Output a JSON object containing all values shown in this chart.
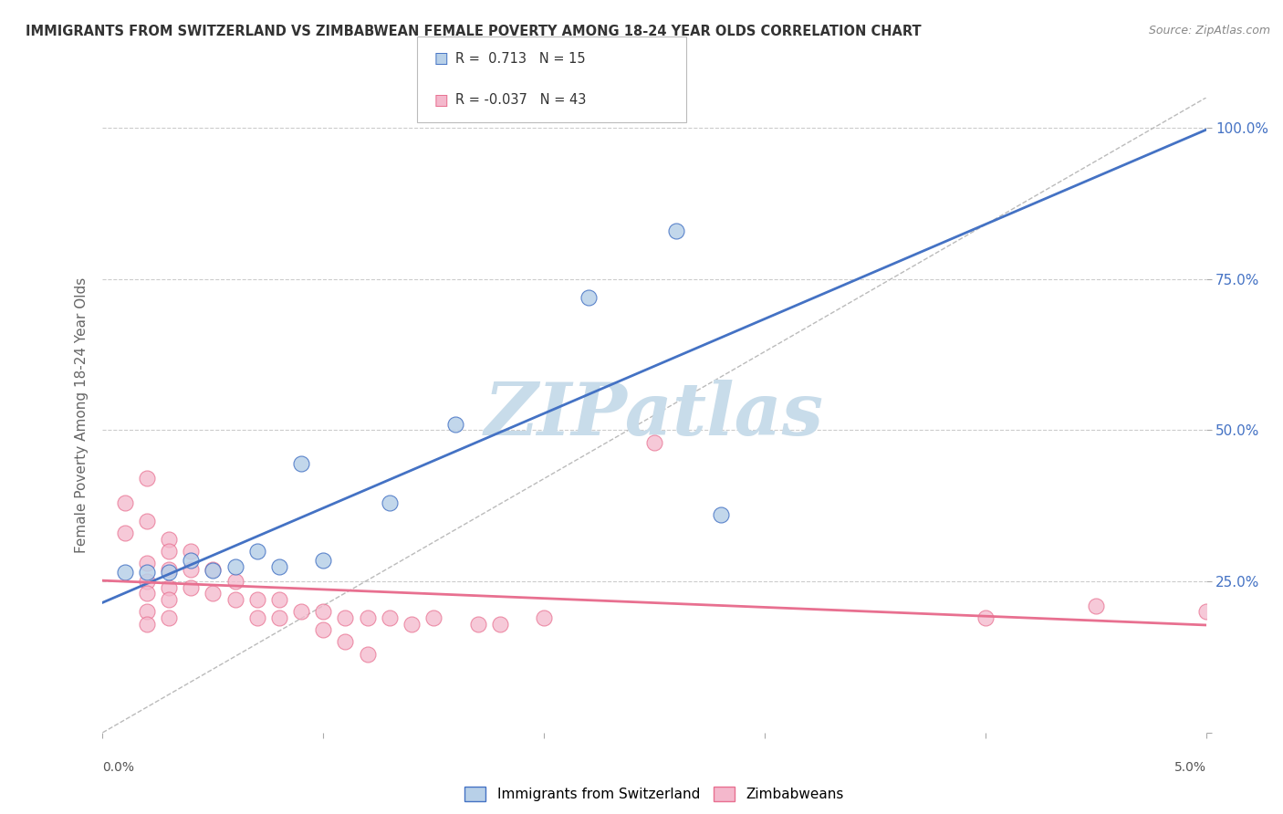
{
  "title": "IMMIGRANTS FROM SWITZERLAND VS ZIMBABWEAN FEMALE POVERTY AMONG 18-24 YEAR OLDS CORRELATION CHART",
  "source": "Source: ZipAtlas.com",
  "ylabel": "Female Poverty Among 18-24 Year Olds",
  "legend_entries": [
    {
      "label": "Immigrants from Switzerland",
      "color": "#b8d0e8",
      "edge_color": "#4472c4",
      "R": "0.713",
      "N": "15"
    },
    {
      "label": "Zimbabweans",
      "color": "#f4b8cc",
      "edge_color": "#e87090",
      "R": "-0.037",
      "N": "43"
    }
  ],
  "swiss_points": [
    [
      0.001,
      0.265
    ],
    [
      0.002,
      0.265
    ],
    [
      0.003,
      0.265
    ],
    [
      0.004,
      0.285
    ],
    [
      0.005,
      0.268
    ],
    [
      0.006,
      0.275
    ],
    [
      0.007,
      0.3
    ],
    [
      0.008,
      0.275
    ],
    [
      0.009,
      0.445
    ],
    [
      0.01,
      0.285
    ],
    [
      0.013,
      0.38
    ],
    [
      0.016,
      0.51
    ],
    [
      0.022,
      0.72
    ],
    [
      0.026,
      0.83
    ],
    [
      0.028,
      0.36
    ]
  ],
  "zim_points": [
    [
      0.001,
      0.38
    ],
    [
      0.001,
      0.33
    ],
    [
      0.002,
      0.42
    ],
    [
      0.002,
      0.35
    ],
    [
      0.002,
      0.28
    ],
    [
      0.002,
      0.25
    ],
    [
      0.002,
      0.23
    ],
    [
      0.002,
      0.2
    ],
    [
      0.002,
      0.18
    ],
    [
      0.003,
      0.32
    ],
    [
      0.003,
      0.3
    ],
    [
      0.003,
      0.27
    ],
    [
      0.003,
      0.24
    ],
    [
      0.003,
      0.22
    ],
    [
      0.003,
      0.19
    ],
    [
      0.004,
      0.3
    ],
    [
      0.004,
      0.27
    ],
    [
      0.004,
      0.24
    ],
    [
      0.005,
      0.27
    ],
    [
      0.005,
      0.23
    ],
    [
      0.006,
      0.25
    ],
    [
      0.006,
      0.22
    ],
    [
      0.007,
      0.22
    ],
    [
      0.007,
      0.19
    ],
    [
      0.008,
      0.22
    ],
    [
      0.008,
      0.19
    ],
    [
      0.009,
      0.2
    ],
    [
      0.01,
      0.2
    ],
    [
      0.01,
      0.17
    ],
    [
      0.011,
      0.19
    ],
    [
      0.011,
      0.15
    ],
    [
      0.012,
      0.19
    ],
    [
      0.012,
      0.13
    ],
    [
      0.013,
      0.19
    ],
    [
      0.014,
      0.18
    ],
    [
      0.015,
      0.19
    ],
    [
      0.017,
      0.18
    ],
    [
      0.018,
      0.18
    ],
    [
      0.02,
      0.19
    ],
    [
      0.025,
      0.48
    ],
    [
      0.04,
      0.19
    ],
    [
      0.045,
      0.21
    ],
    [
      0.05,
      0.2
    ]
  ],
  "swiss_line_color": "#4472c4",
  "zim_line_color": "#e87090",
  "dot_size": 150,
  "background_color": "#ffffff",
  "grid_color": "#cccccc",
  "watermark": "ZIPatlas",
  "watermark_color": "#c8dcea",
  "xlim": [
    0.0,
    0.05
  ],
  "ylim": [
    0.0,
    1.05
  ],
  "xtick_positions": [
    0.0,
    0.01,
    0.02,
    0.03,
    0.04,
    0.05
  ],
  "ytick_positions": [
    0.0,
    0.25,
    0.5,
    0.75,
    1.0
  ]
}
